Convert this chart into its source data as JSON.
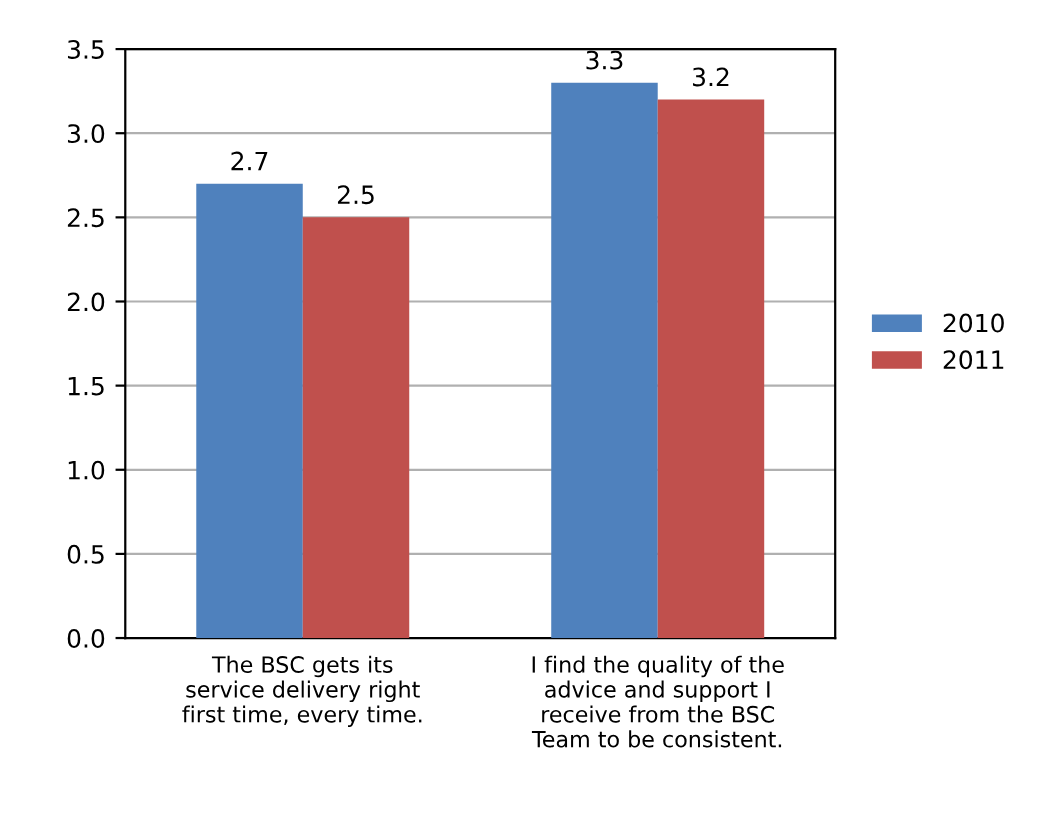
{
  "chart_data": {
    "type": "bar",
    "categories": [
      "The BSC gets its service delivery right first time, every time.",
      "I find the quality of the advice and support I receive from the BSC Team to be consistent."
    ],
    "series": [
      {
        "name": "2010",
        "color": "#4f81bd",
        "values": [
          2.7,
          3.3
        ]
      },
      {
        "name": "2011",
        "color": "#c0504d",
        "values": [
          2.5,
          3.2
        ]
      }
    ],
    "ylim": [
      0,
      3.5
    ],
    "yticks": [
      {
        "value": 0,
        "label": "0.0"
      },
      {
        "value": 0.5,
        "label": "0.5"
      },
      {
        "value": 1,
        "label": "1.0"
      },
      {
        "value": 1.5,
        "label": "1.5"
      },
      {
        "value": 2,
        "label": "2.0"
      },
      {
        "value": 2.5,
        "label": "2.5"
      },
      {
        "value": 3,
        "label": "3.0"
      },
      {
        "value": 3.5,
        "label": "3.5"
      }
    ],
    "grid": "y",
    "legend": "right",
    "data_labels": true
  }
}
